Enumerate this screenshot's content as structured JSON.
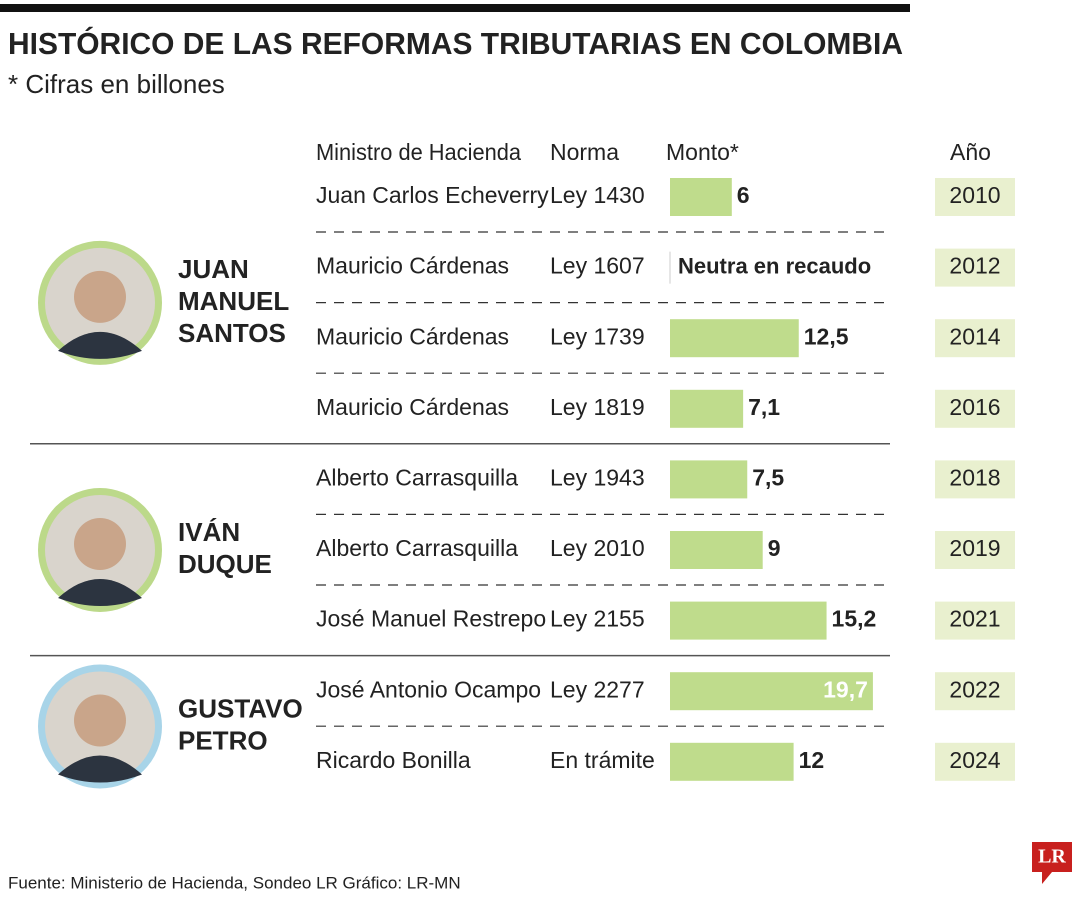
{
  "title": "HISTÓRICO DE LAS REFORMAS TRIBUTARIAS EN COLOMBIA",
  "subtitle": "* Cifras en billones",
  "headers": {
    "minister": "Ministro de Hacienda",
    "norma": "Norma",
    "monto": "Monto*",
    "year": "Año"
  },
  "presidents": [
    {
      "name_lines": [
        "JUAN",
        "MANUEL",
        "SANTOS"
      ],
      "rows": [
        0,
        3
      ],
      "color": "#bcd98a"
    },
    {
      "name_lines": [
        "IVÁN",
        "DUQUE"
      ],
      "rows": [
        4,
        6
      ],
      "color": "#bcd98a"
    },
    {
      "name_lines": [
        "GUSTAVO",
        "PETRO"
      ],
      "rows": [
        7,
        8
      ],
      "color": "#a8d4e8"
    }
  ],
  "rows": [
    {
      "minister": "Juan Carlos Echeverry",
      "norma": "Ley 1430",
      "value": 6,
      "value_label": "6",
      "year": "2010"
    },
    {
      "minister": "Mauricio Cárdenas",
      "norma": "Ley 1607",
      "value": null,
      "value_label": "Neutra en recaudo",
      "year": "2012"
    },
    {
      "minister": "Mauricio Cárdenas",
      "norma": "Ley 1739",
      "value": 12.5,
      "value_label": "12,5",
      "year": "2014"
    },
    {
      "minister": "Mauricio Cárdenas",
      "norma": "Ley 1819",
      "value": 7.1,
      "value_label": "7,1",
      "year": "2016"
    },
    {
      "minister": "Alberto Carrasquilla",
      "norma": "Ley 1943",
      "value": 7.5,
      "value_label": "7,5",
      "year": "2018"
    },
    {
      "minister": "Alberto Carrasquilla",
      "norma": "Ley 2010",
      "value": 9,
      "value_label": "9",
      "year": "2019"
    },
    {
      "minister": "José Manuel Restrepo",
      "norma": "Ley 2155",
      "value": 15.2,
      "value_label": "15,2",
      "year": "2021"
    },
    {
      "minister": "José Antonio Ocampo",
      "norma": "Ley 2277",
      "value": 19.7,
      "value_label": "19,7",
      "year": "2022"
    },
    {
      "minister": "Ricardo Bonilla",
      "norma": "En trámite",
      "value": 12,
      "value_label": "12",
      "year": "2024"
    }
  ],
  "bar_color": "#bfdc8c",
  "footer": "Fuente: Ministerio de Hacienda, Sondeo LR  Gráfico: LR-MN",
  "logo": "LR"
}
